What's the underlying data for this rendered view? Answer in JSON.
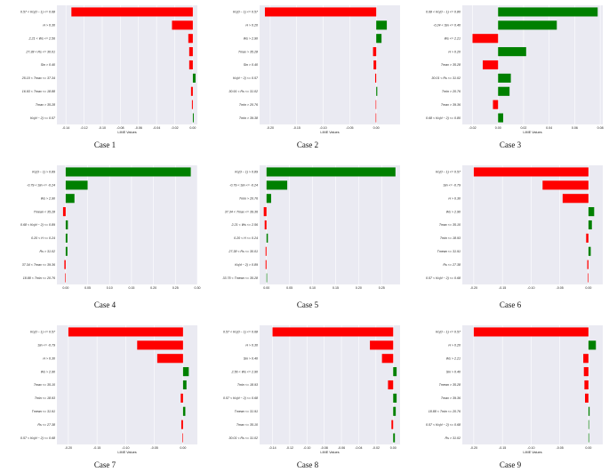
{
  "colors": {
    "positive": "#008000",
    "negative": "#ff0000",
    "background": "#eaeaf2"
  },
  "chart_data": [
    {
      "type": "bar",
      "orientation": "horizontal",
      "caption": "Case 1",
      "xlabel": "LIME Values",
      "xlim": [
        -0.15,
        0.005
      ],
      "xticks": [
        -0.14,
        -0.12,
        -0.1,
        -0.08,
        -0.06,
        -0.04,
        -0.02,
        0.0
      ],
      "tick_labels": [
        "-0.14",
        "-0.12",
        "-0.10",
        "-0.08",
        "-0.06",
        "-0.04",
        "-0.02",
        "0.00"
      ],
      "features": [
        "0.57 < Kc(d − 1) <= 0.68",
        "H > 0.30",
        "2.21 < Ws <= 2.56",
        "27.38 < Rs <= 30.01",
        "Sin > 0.40",
        "25.10 < Tmax <= 37.34",
        "16.93 < Tmax <= 18.88",
        "Tmax > 35.28",
        "Kc(d − 2) <= 0.57"
      ],
      "values": [
        -0.134,
        -0.023,
        -0.005,
        -0.004,
        -0.004,
        0.003,
        -0.002,
        -0.001,
        0.001
      ]
    },
    {
      "type": "bar",
      "orientation": "horizontal",
      "caption": "Case 2",
      "xlabel": "LIME Values",
      "xlim": [
        -0.22,
        0.045
      ],
      "xticks": [
        -0.2,
        -0.15,
        -0.1,
        -0.05,
        0.0
      ],
      "tick_labels": [
        "-0.20",
        "-0.15",
        "-0.10",
        "-0.05",
        "0.00"
      ],
      "features": [
        "Kc(d − 1) <= 0.57",
        "H > 0.20",
        "Ws > 2.90",
        "Tmax > 35.28",
        "Sin > 0.40",
        "Kc(d − 2) <= 0.57",
        "30.91 < Rs <= 31.02",
        "Tmin > 20.76",
        "Tmin > 39.38"
      ],
      "values": [
        -0.21,
        0.02,
        0.01,
        -0.006,
        -0.005,
        -0.002,
        0.002,
        -0.001,
        -0.001
      ]
    },
    {
      "type": "bar",
      "orientation": "horizontal",
      "caption": "Case 3",
      "xlabel": "LIME Values",
      "xlim": [
        -0.028,
        0.082
      ],
      "xticks": [
        -0.02,
        0.0,
        0.02,
        0.04,
        0.06,
        0.08
      ],
      "tick_labels": [
        "-0.02",
        "0.00",
        "0.02",
        "0.04",
        "0.06",
        "0.08"
      ],
      "features": [
        "0.68 < Kc(d − 1) <= 0.80",
        "-0.24 < Sin <= 0.40",
        "Ws <= 2.21",
        "H > 0.20",
        "Tmax > 35.28",
        "30.01 < Rs <= 31.02",
        "Tmin > 20.76",
        "Tmax > 39.36",
        "0.68 < Kc(d − 2) <= 0.80"
      ],
      "values": [
        0.078,
        0.046,
        -0.02,
        0.022,
        -0.012,
        0.01,
        0.009,
        -0.004,
        0.004
      ]
    },
    {
      "type": "bar",
      "orientation": "horizontal",
      "caption": "Case 4",
      "xlabel": "",
      "xlim": [
        -0.02,
        0.3
      ],
      "xticks": [
        0.0,
        0.05,
        0.1,
        0.15,
        0.2,
        0.25,
        0.3
      ],
      "tick_labels": [
        "0.00",
        "0.05",
        "0.10",
        "0.15",
        "0.20",
        "0.25",
        "0.30"
      ],
      "features": [
        "Kc(d − 1) > 0.89",
        "-0.79 < Sin <= -0.24",
        "Ws > 2.90",
        "Tmean < 35.28",
        "0.68 < Kc(d − 2) <= 0.89",
        "0.20 < H <= 0.24",
        "Rs > 31.02",
        "37.34 < Tmax <= 39.36",
        "18.88 < Tmin <= 20.76"
      ],
      "values": [
        0.285,
        0.05,
        0.02,
        -0.006,
        0.005,
        0.004,
        0.004,
        -0.003,
        -0.001
      ]
    },
    {
      "type": "bar",
      "orientation": "horizontal",
      "caption": "Case 5",
      "xlabel": "",
      "xlim": [
        -0.015,
        0.29
      ],
      "xticks": [
        0.0,
        0.05,
        0.1,
        0.15,
        0.2,
        0.25
      ],
      "tick_labels": [
        "0.00",
        "0.05",
        "0.10",
        "0.15",
        "0.20",
        "0.25"
      ],
      "features": [
        "Kc(d − 1) > 0.89",
        "-0.79 < Sin <= -0.24",
        "Tmin > 20.76",
        "37.34 < Tmax <= 39.36",
        "2.21 < Ws <= 2.56",
        "0.20 < H <= 0.24",
        "27.38 < Rs <= 30.01",
        "Kc(d − 2) > 0.89",
        "33.75 < Tmean <= 35.28"
      ],
      "values": [
        0.28,
        0.045,
        0.01,
        -0.006,
        -0.004,
        0.003,
        -0.002,
        -0.002,
        0.001
      ]
    },
    {
      "type": "bar",
      "orientation": "horizontal",
      "caption": "Case 6",
      "xlabel": "",
      "xlim": [
        -0.22,
        0.025
      ],
      "xticks": [
        -0.2,
        -0.15,
        -0.1,
        -0.05,
        0.0
      ],
      "tick_labels": [
        "-0.20",
        "-0.15",
        "-0.10",
        "-0.05",
        "0.00"
      ],
      "features": [
        "Kc(d − 1) <= 0.57",
        "Sin <= -0.79",
        "H > 0.30",
        "Ws > 2.90",
        "Tmax <= 35.10",
        "Tmin <= 18.93",
        "Tmean <= 31.91",
        "Rs <= 27.38",
        "0.57 < Kc(d − 2) <= 0.68"
      ],
      "values": [
        -0.2,
        -0.08,
        -0.045,
        0.01,
        0.006,
        -0.004,
        0.004,
        -0.002,
        -0.001
      ]
    },
    {
      "type": "bar",
      "orientation": "horizontal",
      "caption": "Case 7",
      "xlabel": "LIME Values",
      "xlim": [
        -0.22,
        0.025
      ],
      "xticks": [
        -0.2,
        -0.15,
        -0.1,
        -0.05,
        0.0
      ],
      "tick_labels": [
        "-0.20",
        "-0.15",
        "-0.10",
        "-0.05",
        "0.00"
      ],
      "features": [
        "Kc(d − 1) <= 0.57",
        "Sin <= -0.79",
        "H > 0.30",
        "Ws > 2.90",
        "Tmax <= 35.10",
        "Tmin <= 18.93",
        "Tmean <= 31.91",
        "Rs <= 27.38",
        "0.57 < Kc(d − 2) <= 0.68"
      ],
      "values": [
        -0.2,
        -0.08,
        -0.045,
        0.01,
        0.006,
        -0.004,
        0.004,
        -0.003,
        -0.001
      ]
    },
    {
      "type": "bar",
      "orientation": "horizontal",
      "caption": "Case 8",
      "xlabel": "LIME Values",
      "xlim": [
        -0.155,
        0.008
      ],
      "xticks": [
        -0.14,
        -0.12,
        -0.1,
        -0.08,
        -0.06,
        -0.04,
        -0.02,
        0.0
      ],
      "tick_labels": [
        "-0.14",
        "-0.12",
        "-0.10",
        "-0.08",
        "-0.06",
        "-0.04",
        "-0.02",
        "0.00"
      ],
      "features": [
        "0.57 < Kc(d − 1) <= 0.68",
        "H > 0.30",
        "Sin > 0.40",
        "2.56 < Ws <= 2.90",
        "Tmin <= 18.93",
        "0.57 < Kc(d − 2) <= 0.68",
        "Tmean <= 31.91",
        "Tmax <= 35.10",
        "30.01 < Rs <= 31.02"
      ],
      "values": [
        -0.14,
        -0.027,
        -0.013,
        0.004,
        -0.006,
        0.004,
        0.003,
        -0.002,
        0.002
      ]
    },
    {
      "type": "bar",
      "orientation": "horizontal",
      "caption": "Case 9",
      "xlabel": "LIME Values",
      "xlim": [
        -0.22,
        0.025
      ],
      "xticks": [
        -0.2,
        -0.15,
        -0.1,
        -0.05,
        0.0
      ],
      "tick_labels": [
        "-0.20",
        "-0.15",
        "-0.10",
        "-0.05",
        "0.00"
      ],
      "features": [
        "Kc(d − 1) <= 0.57",
        "H > 0.20",
        "Ws > 2.21",
        "Sin > 0.40",
        "Tmean > 35.28",
        "Tmax > 39.36",
        "18.88 < Tmin <= 20.76",
        "0.57 < Kc(d − 2) <= 0.68",
        "Rs > 31.02"
      ],
      "values": [
        -0.2,
        0.013,
        -0.009,
        -0.008,
        -0.007,
        -0.006,
        0.002,
        0.001,
        0.001
      ]
    }
  ]
}
